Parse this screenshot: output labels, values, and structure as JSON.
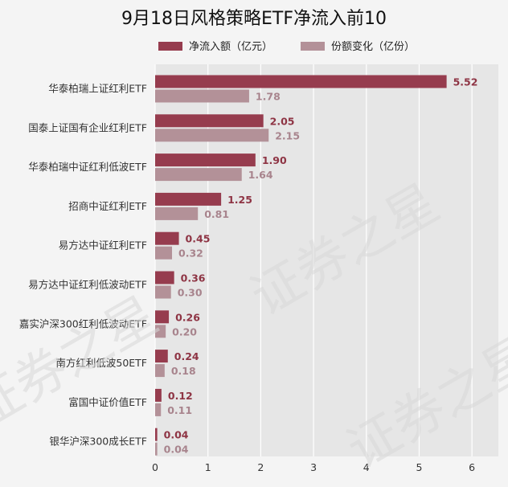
{
  "chart_data": {
    "type": "bar",
    "orientation": "horizontal",
    "title": "9月18日风格策略ETF净流入前10",
    "categories": [
      "华泰柏瑞上证红利ETF",
      "国泰上证国有企业红利ETF",
      "华泰柏瑞中证红利低波ETF",
      "招商中证红利ETF",
      "易方达中证红利ETF",
      "易方达中证红利低波动ETF",
      "嘉实沪深300红利低波动ETF",
      "南方红利低波50ETF",
      "富国中证价值ETF",
      "银华沪深300成长ETF"
    ],
    "series": [
      {
        "name": "净流入额（亿元）",
        "color": "#963c4e",
        "values": [
          5.52,
          2.05,
          1.9,
          1.25,
          0.45,
          0.36,
          0.26,
          0.24,
          0.12,
          0.04
        ]
      },
      {
        "name": "份额变化（亿份）",
        "color": "#b39198",
        "values": [
          1.78,
          2.15,
          1.64,
          0.81,
          0.32,
          0.3,
          0.2,
          0.18,
          0.11,
          0.04
        ]
      }
    ],
    "xlim": [
      0,
      6.5
    ],
    "xticks": [
      0,
      1,
      2,
      3,
      4,
      5,
      6
    ],
    "xlabel": "",
    "ylabel": "",
    "grid": true,
    "legend": "top",
    "watermark": "证券之星"
  }
}
